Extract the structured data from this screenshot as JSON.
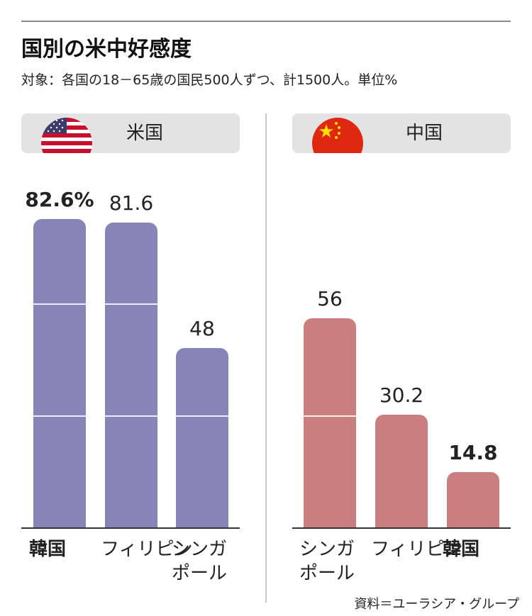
{
  "title": "国別の米中好感度",
  "subtitle": "対象：各国の18－65歳の国民500人ずつ、計1500人。単位%",
  "source": "資料＝ユーラシア・グループ",
  "colors": {
    "us_bar": "#8784b8",
    "cn_bar": "#c97f7f"
  },
  "chart_data": [
    {
      "type": "bar",
      "title": "米国",
      "icon": "us-flag-icon",
      "categories": [
        "韓国",
        "フィリピン",
        "シンガポール"
      ],
      "category_lines": [
        [
          "韓国"
        ],
        [
          "フィリピン"
        ],
        [
          "シンガ",
          "ポール"
        ]
      ],
      "values": [
        82.6,
        81.6,
        48
      ],
      "value_labels": [
        "82.6%",
        "81.6",
        "48"
      ],
      "bold": [
        true,
        false,
        false
      ],
      "ylim": [
        0,
        100
      ],
      "grid_values": [
        30,
        60,
        90
      ],
      "color": "#8784b8"
    },
    {
      "type": "bar",
      "title": "中国",
      "icon": "china-flag-icon",
      "categories": [
        "シンガポール",
        "フィリピン",
        "韓国"
      ],
      "category_lines": [
        [
          "シンガ",
          "ポール"
        ],
        [
          "フィリピン"
        ],
        [
          "韓国"
        ]
      ],
      "values": [
        56,
        30.2,
        14.8
      ],
      "value_labels": [
        "56",
        "30.2",
        "14.8"
      ],
      "bold": [
        false,
        false,
        true
      ],
      "ylim": [
        0,
        100
      ],
      "grid_values": [
        30,
        60,
        90
      ],
      "color": "#c97f7f"
    }
  ]
}
